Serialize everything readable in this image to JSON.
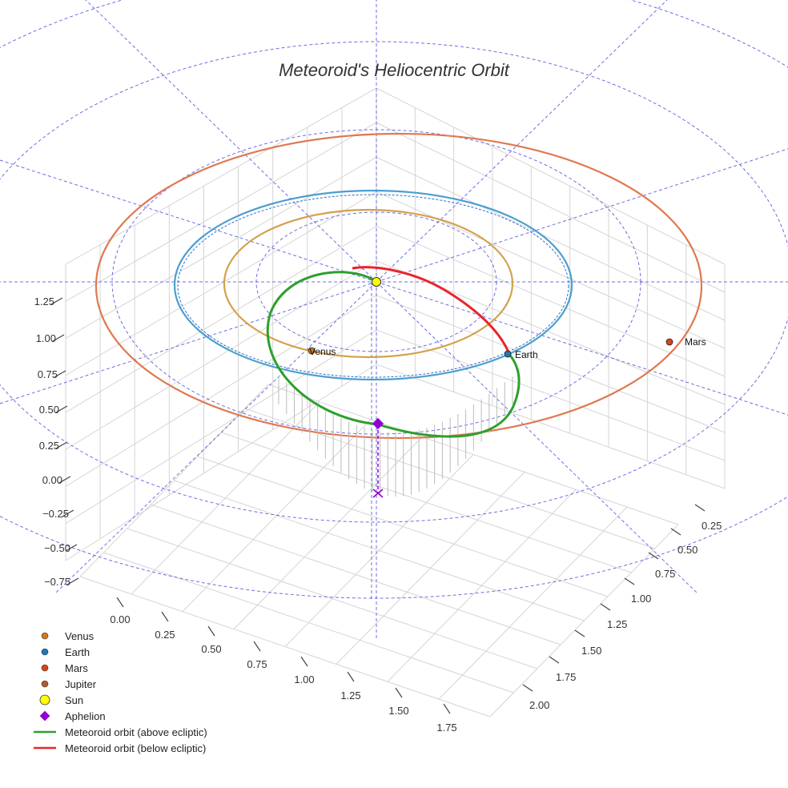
{
  "chart_data": {
    "type": "line3d",
    "title": "Meteoroid's Heliocentric Orbit",
    "x_ticks": [
      "0.00",
      "0.25",
      "0.50",
      "0.75",
      "1.00",
      "1.25",
      "1.50",
      "1.75"
    ],
    "y_ticks": [
      "0.25",
      "0.50",
      "0.75",
      "1.00",
      "1.25",
      "1.50",
      "1.75",
      "2.00"
    ],
    "z_ticks": [
      "−0.75",
      "−0.50",
      "−0.25",
      "0.00",
      "0.25",
      "0.50",
      "0.75",
      "1.00",
      "1.25"
    ],
    "planets": [
      {
        "name": "Venus",
        "orbit_radius_au": 0.72,
        "color": "#d4a04a",
        "marker_color": "#d07a1e"
      },
      {
        "name": "Earth",
        "orbit_radius_au": 1.0,
        "color": "#4a9ed0",
        "marker_color": "#1f77b4"
      },
      {
        "name": "Mars",
        "orbit_radius_au": 1.52,
        "color": "#e07850",
        "marker_color": "#d6441a"
      }
    ],
    "sun": {
      "name": "Sun",
      "color": "#ffff00"
    },
    "meteoroid": {
      "above_color": "#2ca02c",
      "below_color": "#e8252a",
      "aphelion_color": "#9400d3"
    },
    "legend": [
      {
        "label": "Venus",
        "kind": "dot",
        "color": "#d07a1e"
      },
      {
        "label": "Earth",
        "kind": "dot",
        "color": "#1f77b4"
      },
      {
        "label": "Mars",
        "kind": "dot",
        "color": "#d6441a"
      },
      {
        "label": "Jupiter",
        "kind": "dot",
        "color": "#b05a2a"
      },
      {
        "label": "Sun",
        "kind": "sun",
        "color": "#ffff00"
      },
      {
        "label": "Aphelion",
        "kind": "diamond",
        "color": "#9400d3"
      },
      {
        "label": "Meteoroid orbit (above ecliptic)",
        "kind": "line",
        "color": "#2ca02c"
      },
      {
        "label": "Meteoroid orbit (below ecliptic)",
        "kind": "line",
        "color": "#e8252a"
      }
    ]
  }
}
